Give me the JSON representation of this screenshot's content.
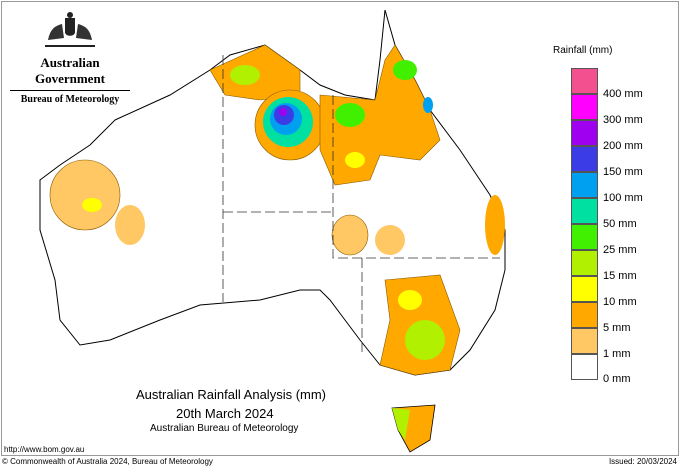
{
  "header": {
    "government": "Australian Government",
    "bureau": "Bureau of Meteorology",
    "crest": "commonwealth-coat-of-arms"
  },
  "title": {
    "line1": "Australian Rainfall Analysis (mm)",
    "line2": "20th March 2024",
    "line3": "Australian Bureau of Meteorology"
  },
  "url": "http://www.bom.gov.au",
  "footer": {
    "copyright": "© Commonwealth of Australia 2024, Bureau of Meteorology",
    "issued": "Issued: 20/03/2024"
  },
  "legend": {
    "title": "Rainfall (mm)",
    "colors": [
      "#f2508f",
      "#ff00ff",
      "#a000f0",
      "#3c3ce6",
      "#00a0f0",
      "#00e0a0",
      "#40f000",
      "#b0f000",
      "#ffff00",
      "#ffa800",
      "#ffc864",
      "#ffffff"
    ],
    "labels": [
      "400 mm",
      "300 mm",
      "200 mm",
      "150 mm",
      "100 mm",
      "50 mm",
      "25 mm",
      "15 mm",
      "10 mm",
      "5 mm",
      "1 mm",
      "0 mm"
    ]
  }
}
